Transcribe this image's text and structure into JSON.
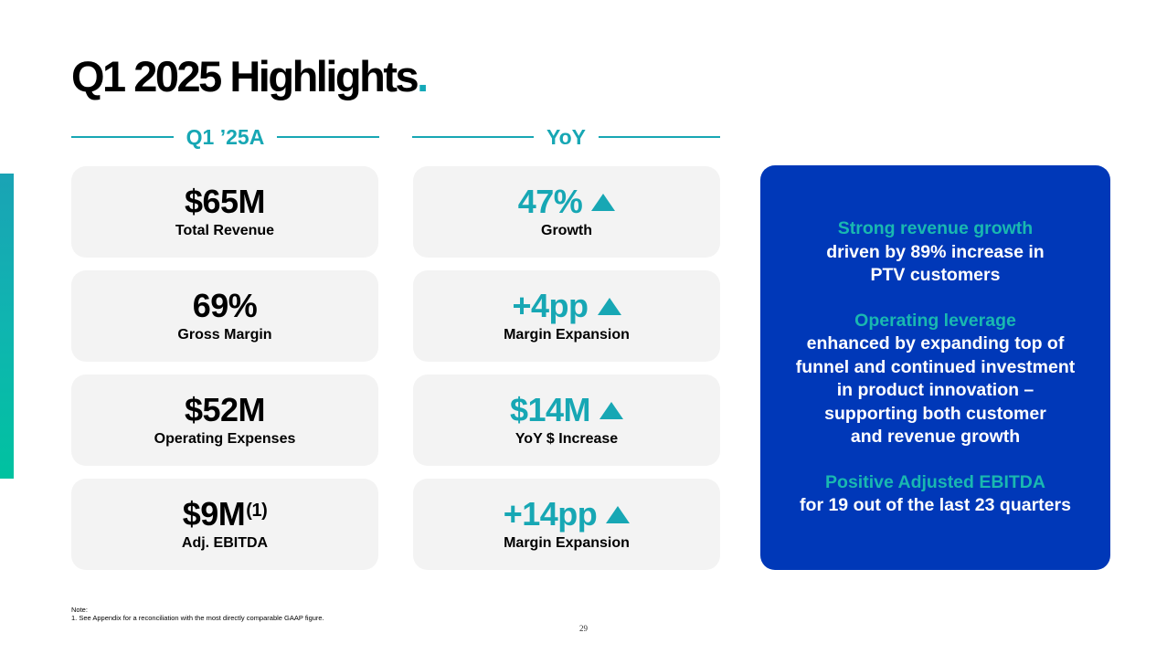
{
  "title": {
    "text": "Q1 2025 Highlights",
    "dot": "."
  },
  "columns": [
    {
      "header": "Q1 ’25A"
    },
    {
      "header": "YoY"
    }
  ],
  "left_cards": [
    {
      "value": "$65M",
      "label": "Total Revenue"
    },
    {
      "value": "69%",
      "label": "Gross Margin"
    },
    {
      "value": "$52M",
      "label": "Operating Expenses"
    },
    {
      "value": "$9M",
      "sup": "(1)",
      "label": "Adj. EBITDA"
    }
  ],
  "right_cards": [
    {
      "value": "47%",
      "label": "Growth",
      "icon": "up-triangle-icon"
    },
    {
      "value": "+4pp",
      "label": "Margin Expansion",
      "icon": "up-triangle-icon"
    },
    {
      "value": "$14M",
      "label": "YoY $ Increase",
      "icon": "up-triangle-icon"
    },
    {
      "value": "+14pp",
      "label": "Margin Expansion",
      "icon": "up-triangle-icon"
    }
  ],
  "panel": [
    {
      "highlight": "Strong revenue growth",
      "text": "driven by 89% increase in\nPTV customers"
    },
    {
      "highlight": "Operating leverage",
      "text": "enhanced by expanding top of\nfunnel and continued investment\nin product innovation –\nsupporting both customer\nand revenue growth"
    },
    {
      "highlight": "Positive Adjusted EBITDA",
      "text": "for 19 out of the last 23 quarters"
    }
  ],
  "note": {
    "heading": "Note:",
    "line1": "1. See Appendix for a reconciliation with the most directly comparable GAAP figure."
  },
  "page_number": "29",
  "colors": {
    "accent": "#17a7b4",
    "panel": "#0038b8",
    "card": "#f3f3f3",
    "panel_highlight": "#19b8b0"
  }
}
